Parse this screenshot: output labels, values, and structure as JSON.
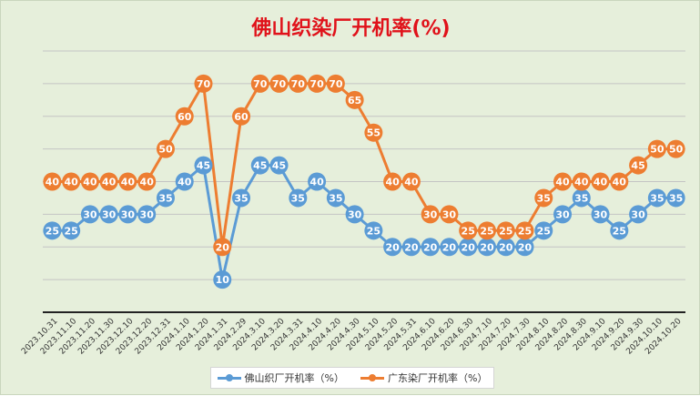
{
  "chart_data": {
    "type": "line",
    "title": "佛山织染厂开机率(%)",
    "categories": [
      "2023.10.31",
      "2023.11.10",
      "2023.11.20",
      "2023.11.30",
      "2023.12.10",
      "2023.12.20",
      "2023.12.31",
      "2024.1.10",
      "2024.1.20",
      "2024.1.31",
      "2024.2.29",
      "2024.3.10",
      "2024.3.20",
      "2024.3.31",
      "2024.4.10",
      "2024.4.20",
      "2024.4.30",
      "2024.5.10",
      "2024.5.20",
      "2024.5.31",
      "2024.6.10",
      "2024.6.20",
      "2024.6.30",
      "2024.7.10",
      "2024.7.20",
      "2024.7.30",
      "2024.8.10",
      "2024.8.20",
      "2024.8.30",
      "2024.9.10",
      "2024.9.20",
      "2024.9.30",
      "2024.10.10",
      "2024.10.20"
    ],
    "series": [
      {
        "name": "佛山织厂开机率（%）",
        "color": "#5b9bd5",
        "values": [
          25,
          25,
          30,
          30,
          30,
          30,
          35,
          40,
          45,
          10,
          35,
          45,
          45,
          35,
          40,
          35,
          30,
          25,
          20,
          20,
          20,
          20,
          20,
          20,
          20,
          20,
          25,
          30,
          35,
          30,
          25,
          30,
          35,
          35
        ]
      },
      {
        "name": "广东染厂开机率（%）",
        "color": "#ed7d31",
        "values": [
          40,
          40,
          40,
          40,
          40,
          40,
          50,
          60,
          70,
          20,
          60,
          70,
          70,
          70,
          70,
          70,
          65,
          55,
          40,
          40,
          30,
          30,
          25,
          25,
          25,
          25,
          35,
          40,
          40,
          40,
          40,
          45,
          50,
          50
        ]
      }
    ],
    "ylim": [
      0,
      80
    ],
    "grid": true,
    "legend_position": "bottom"
  }
}
